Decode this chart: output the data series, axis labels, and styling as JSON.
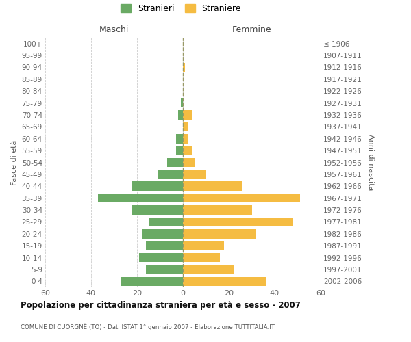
{
  "age_groups": [
    "0-4",
    "5-9",
    "10-14",
    "15-19",
    "20-24",
    "25-29",
    "30-34",
    "35-39",
    "40-44",
    "45-49",
    "50-54",
    "55-59",
    "60-64",
    "65-69",
    "70-74",
    "75-79",
    "80-84",
    "85-89",
    "90-94",
    "95-99",
    "100+"
  ],
  "birth_years": [
    "2002-2006",
    "1997-2001",
    "1992-1996",
    "1987-1991",
    "1982-1986",
    "1977-1981",
    "1972-1976",
    "1967-1971",
    "1962-1966",
    "1957-1961",
    "1952-1956",
    "1947-1951",
    "1942-1946",
    "1937-1941",
    "1932-1936",
    "1927-1931",
    "1922-1926",
    "1917-1921",
    "1912-1916",
    "1907-1911",
    "≤ 1906"
  ],
  "maschi": [
    27,
    16,
    19,
    16,
    18,
    15,
    22,
    37,
    22,
    11,
    7,
    3,
    3,
    0,
    2,
    1,
    0,
    0,
    0,
    0,
    0
  ],
  "femmine": [
    36,
    22,
    16,
    18,
    32,
    48,
    30,
    51,
    26,
    10,
    5,
    4,
    2,
    2,
    4,
    0,
    0,
    0,
    1,
    0,
    0
  ],
  "maschi_color": "#6aaa64",
  "femmine_color": "#f5bc42",
  "title": "Popolazione per cittadinanza straniera per età e sesso - 2007",
  "subtitle": "COMUNE DI CUORGNÈ (TO) - Dati ISTAT 1° gennaio 2007 - Elaborazione TUTTITALIA.IT",
  "ylabel_left": "Fasce di età",
  "ylabel_right": "Anni di nascita",
  "xlabel_maschi": "Maschi",
  "xlabel_femmine": "Femmine",
  "legend_stranieri": "Stranieri",
  "legend_straniere": "Straniere",
  "xlim": 60,
  "background_color": "#ffffff",
  "grid_color": "#cccccc",
  "dashed_color": "#999966"
}
